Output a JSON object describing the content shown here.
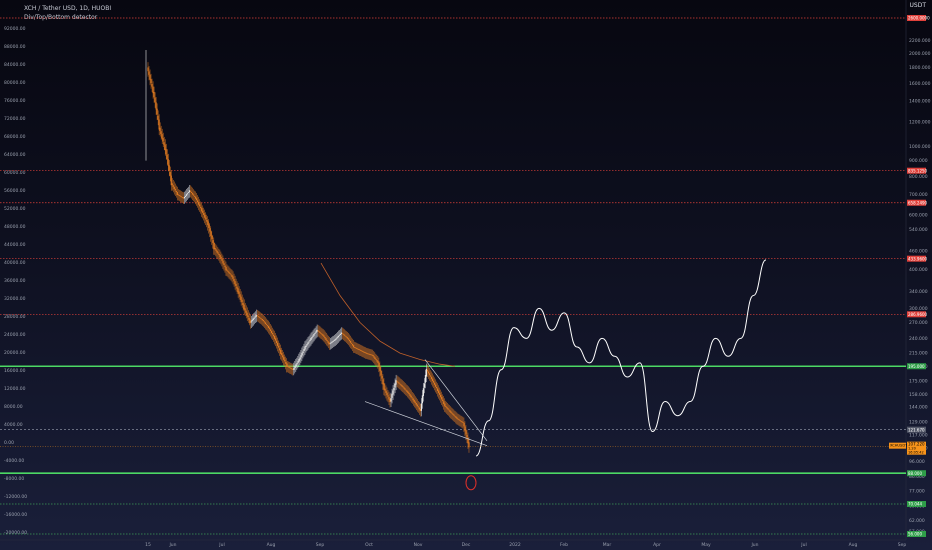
{
  "header": {
    "symbol_line": "XCH / Tether USD, 1D, HUOBI",
    "indicator_line": "Div/Top/Bottom detector"
  },
  "corner": {
    "currency": "USDT"
  },
  "colors": {
    "up_candle": "#e8e8e8",
    "down_candle": "#e07a20",
    "red_level": "#e0403a",
    "green_level": "#4cd964",
    "curve": "#ffffff",
    "ma": "#c0602a",
    "wedge": "#d0d4dc",
    "price_tag": "#f7931a"
  },
  "chart_data": {
    "type": "candlestick",
    "left_axis": {
      "ticks": [
        "92000.00",
        "88000.00",
        "84000.00",
        "80000.00",
        "76000.00",
        "72000.00",
        "68000.00",
        "64000.00",
        "60000.00",
        "56000.00",
        "52000.00",
        "48000.00",
        "44000.00",
        "40000.00",
        "36000.00",
        "32000.00",
        "28000.00",
        "24000.00",
        "20000.00",
        "16000.00",
        "12000.00",
        "8000.00",
        "4000.00",
        "0.00",
        "-4000.00",
        "-8000.00",
        "-12000.00",
        "-16000.00",
        "-20000.00"
      ]
    },
    "right_axis": {
      "scale": "log",
      "ticks": [
        "2200.000",
        "2000.000",
        "1800.000",
        "1600.000",
        "1400.000",
        "1200.000",
        "1000.000",
        "900.000",
        "800.000",
        "700.000",
        "600.000",
        "540.000",
        "460.000",
        "400.000",
        "340.000",
        "300.000",
        "270.000",
        "240.000",
        "215.000",
        "195.000",
        "175.000",
        "158.000",
        "144.000",
        "129.000",
        "117.000",
        "106.000",
        "96.000",
        "86.000",
        "77.000",
        "69.000",
        "62.000",
        "57.000"
      ]
    },
    "x_axis": {
      "ticks": [
        "15",
        "Jun",
        "Jul",
        "Aug",
        "Sep",
        "Oct",
        "Nov",
        "Dec",
        "2022",
        "Feb",
        "Mar",
        "Apr",
        "May",
        "Jun",
        "Jul",
        "Aug",
        "Sep"
      ]
    },
    "levels": [
      {
        "label": "2600.0000",
        "color": "red"
      },
      {
        "label": "835.1250",
        "color": "red"
      },
      {
        "label": "658.2490",
        "color": "red"
      },
      {
        "label": "433.9600",
        "color": "red"
      },
      {
        "label": "286.9600",
        "color": "red"
      },
      {
        "label": "195.000",
        "color": "green"
      },
      {
        "label": "121.670",
        "color": "dashed"
      },
      {
        "label": "88.000",
        "color": "green"
      },
      {
        "label": "70.044",
        "color": "green"
      },
      {
        "label": "56.000",
        "color": "green"
      }
    ],
    "current_price": {
      "symbol": "XCHUSDT",
      "price": "107.220",
      "change": "1.20",
      "time": "16:05:42"
    },
    "price_path": [
      [
        1,
        1800
      ],
      [
        2,
        1500
      ],
      [
        3,
        1150
      ],
      [
        4,
        980
      ],
      [
        5,
        760
      ],
      [
        6,
        700
      ],
      [
        7,
        680
      ],
      [
        8,
        720
      ],
      [
        9,
        680
      ],
      [
        10,
        620
      ],
      [
        11,
        560
      ],
      [
        12,
        470
      ],
      [
        13,
        440
      ],
      [
        14,
        400
      ],
      [
        15,
        380
      ],
      [
        16,
        340
      ],
      [
        17,
        300
      ],
      [
        18,
        270
      ],
      [
        19,
        285
      ],
      [
        20,
        275
      ],
      [
        21,
        260
      ],
      [
        22,
        240
      ],
      [
        23,
        215
      ],
      [
        24,
        195
      ],
      [
        25,
        190
      ],
      [
        26,
        205
      ],
      [
        27,
        225
      ],
      [
        28,
        240
      ],
      [
        29,
        255
      ],
      [
        30,
        245
      ],
      [
        31,
        230
      ],
      [
        32,
        238
      ],
      [
        33,
        250
      ],
      [
        34,
        240
      ],
      [
        35,
        225
      ],
      [
        36,
        220
      ],
      [
        37,
        215
      ],
      [
        38,
        212
      ],
      [
        39,
        200
      ],
      [
        40,
        165
      ],
      [
        41,
        150
      ],
      [
        42,
        175
      ],
      [
        43,
        168
      ],
      [
        44,
        160
      ],
      [
        45,
        150
      ],
      [
        46,
        140
      ],
      [
        47,
        190
      ],
      [
        48,
        175
      ],
      [
        49,
        160
      ],
      [
        50,
        145
      ],
      [
        51,
        138
      ],
      [
        52,
        132
      ],
      [
        53,
        128
      ],
      [
        54,
        107
      ]
    ],
    "projection_path": [
      [
        54,
        100
      ],
      [
        56,
        130
      ],
      [
        58,
        190
      ],
      [
        60,
        260
      ],
      [
        62,
        240
      ],
      [
        64,
        300
      ],
      [
        66,
        255
      ],
      [
        68,
        290
      ],
      [
        70,
        225
      ],
      [
        72,
        200
      ],
      [
        74,
        240
      ],
      [
        76,
        210
      ],
      [
        78,
        180
      ],
      [
        80,
        200
      ],
      [
        82,
        120
      ],
      [
        84,
        150
      ],
      [
        86,
        135
      ],
      [
        88,
        150
      ],
      [
        90,
        195
      ],
      [
        92,
        240
      ],
      [
        94,
        210
      ],
      [
        96,
        240
      ],
      [
        98,
        330
      ],
      [
        100,
        430
      ]
    ]
  }
}
